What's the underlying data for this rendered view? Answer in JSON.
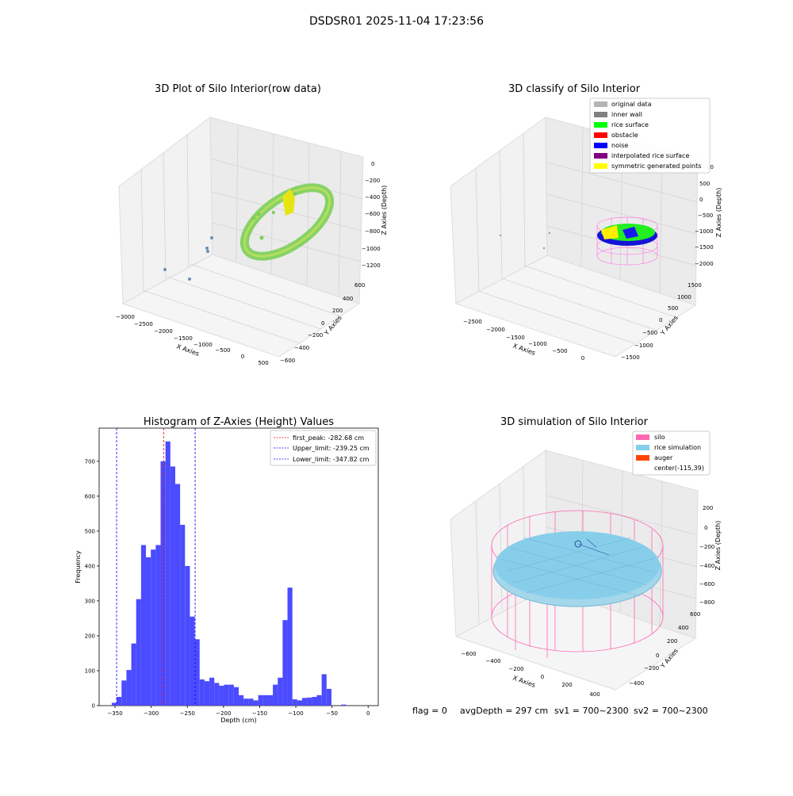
{
  "figure": {
    "suptitle": "DSDSR01 2025-11-04 17:23:56",
    "footer": {
      "flag": "flag = 0",
      "avg_depth": "avgDepth = 297 cm",
      "sv1": "sv1 = 700~2300",
      "sv2": "sv2 = 700~2300"
    }
  },
  "colors": {
    "hist_bar": "#4b4bff",
    "first_peak": "#ff0000",
    "limit": "#0000ff",
    "original_data": "#b3b3b3",
    "inner_wall": "#808080",
    "rice_surface": "#00ff00",
    "obstacle": "#ff0000",
    "noise": "#0000ff",
    "interpolated_rice_surface": "#800080",
    "symmetric_generated_points": "#ffff00",
    "silo": "#ff69b4",
    "rice_simulation": "#87ceeb",
    "auger": "#ff4500"
  },
  "panels": {
    "raw": {
      "title": "3D Plot of Silo Interior(row data)",
      "xlabel": "X Axies",
      "ylabel": "Y Axies",
      "zlabel": "Z Axies (Depth)",
      "x_ticks": [
        "−3000",
        "−2500",
        "−2000",
        "−1500",
        "−1000",
        "−500",
        "0",
        "500"
      ],
      "y_ticks": [
        "−600",
        "−400",
        "−200",
        "0",
        "200",
        "400",
        "600"
      ],
      "z_ticks": [
        "0",
        "−200",
        "−400",
        "−600",
        "−800",
        "−1000",
        "−1200"
      ]
    },
    "classify": {
      "title": "3D classify of Silo Interior",
      "xlabel": "X Axies",
      "ylabel": "Y Axies",
      "zlabel": "Z Axies (Depth)",
      "x_ticks": [
        "−2500",
        "−2000",
        "−1500",
        "−1000",
        "−500",
        "0"
      ],
      "y_ticks": [
        "−1500",
        "−1000",
        "−500",
        "0",
        "500",
        "1000",
        "1500"
      ],
      "z_ticks": [
        "500",
        "0",
        "−500",
        "−1000",
        "−1500",
        "−2000"
      ],
      "z_tick_partial": "00",
      "legend": [
        {
          "label": "original data",
          "color": "#b3b3b3"
        },
        {
          "label": "inner wall",
          "color": "#808080"
        },
        {
          "label": "rice surface",
          "color": "#00ff00"
        },
        {
          "label": "obstacle",
          "color": "#ff0000"
        },
        {
          "label": "noise",
          "color": "#0000ff"
        },
        {
          "label": "interpolated rice surface",
          "color": "#800080"
        },
        {
          "label": "symmetric generated points",
          "color": "#ffff00"
        }
      ]
    },
    "simulation": {
      "title": "3D simulation of Silo Interior",
      "xlabel": "X Axies",
      "ylabel": "Y Axies",
      "zlabel": "Z Axies (Depth)",
      "x_ticks": [
        "−600",
        "−400",
        "−200",
        "0",
        "200",
        "400"
      ],
      "y_ticks": [
        "−400",
        "−200",
        "0",
        "200",
        "400",
        "600"
      ],
      "z_ticks": [
        "200",
        "0",
        "−200",
        "−400",
        "−600",
        "−800"
      ],
      "legend": [
        {
          "label": "silo",
          "color": "#ff69b4"
        },
        {
          "label": "rice simulation",
          "color": "#87ceeb"
        },
        {
          "label": "auger",
          "color": "#ff4500"
        },
        {
          "label": "center(-115,39)",
          "color": ""
        }
      ]
    }
  },
  "chart_data": {
    "type": "bar",
    "title": "Histogram of Z-Axies (Height) Values",
    "xlabel": "Depth (cm)",
    "ylabel": "Frequency",
    "xlim": [
      -372,
      14
    ],
    "ylim": [
      0,
      795
    ],
    "x_ticks": [
      -350,
      -300,
      -250,
      -200,
      -150,
      -100,
      -50,
      0
    ],
    "x_tick_labels": [
      "−350",
      "−300",
      "−250",
      "−200",
      "−150",
      "−100",
      "−50",
      "0"
    ],
    "y_ticks": [
      0,
      100,
      200,
      300,
      400,
      500,
      600,
      700
    ],
    "bin_width": 6.75,
    "bin_start": -354.5,
    "counts": [
      8,
      25,
      72,
      102,
      178,
      305,
      460,
      425,
      447,
      460,
      700,
      757,
      685,
      635,
      518,
      400,
      255,
      190,
      75,
      70,
      80,
      65,
      57,
      60,
      60,
      53,
      30,
      20,
      20,
      15,
      30,
      30,
      30,
      60,
      80,
      245,
      338,
      18,
      15,
      22,
      23,
      25,
      30,
      90,
      48,
      0,
      0,
      3
    ],
    "lines": [
      {
        "name": "first_peak: -282.68 cm",
        "x": -282.68,
        "color": "#ff0000"
      },
      {
        "name": "Upper_limit: -239.25 cm",
        "x": -239.25,
        "color": "#0000ff"
      },
      {
        "name": "Lower_limit: -347.82 cm",
        "x": -347.82,
        "color": "#0000ff"
      }
    ]
  }
}
